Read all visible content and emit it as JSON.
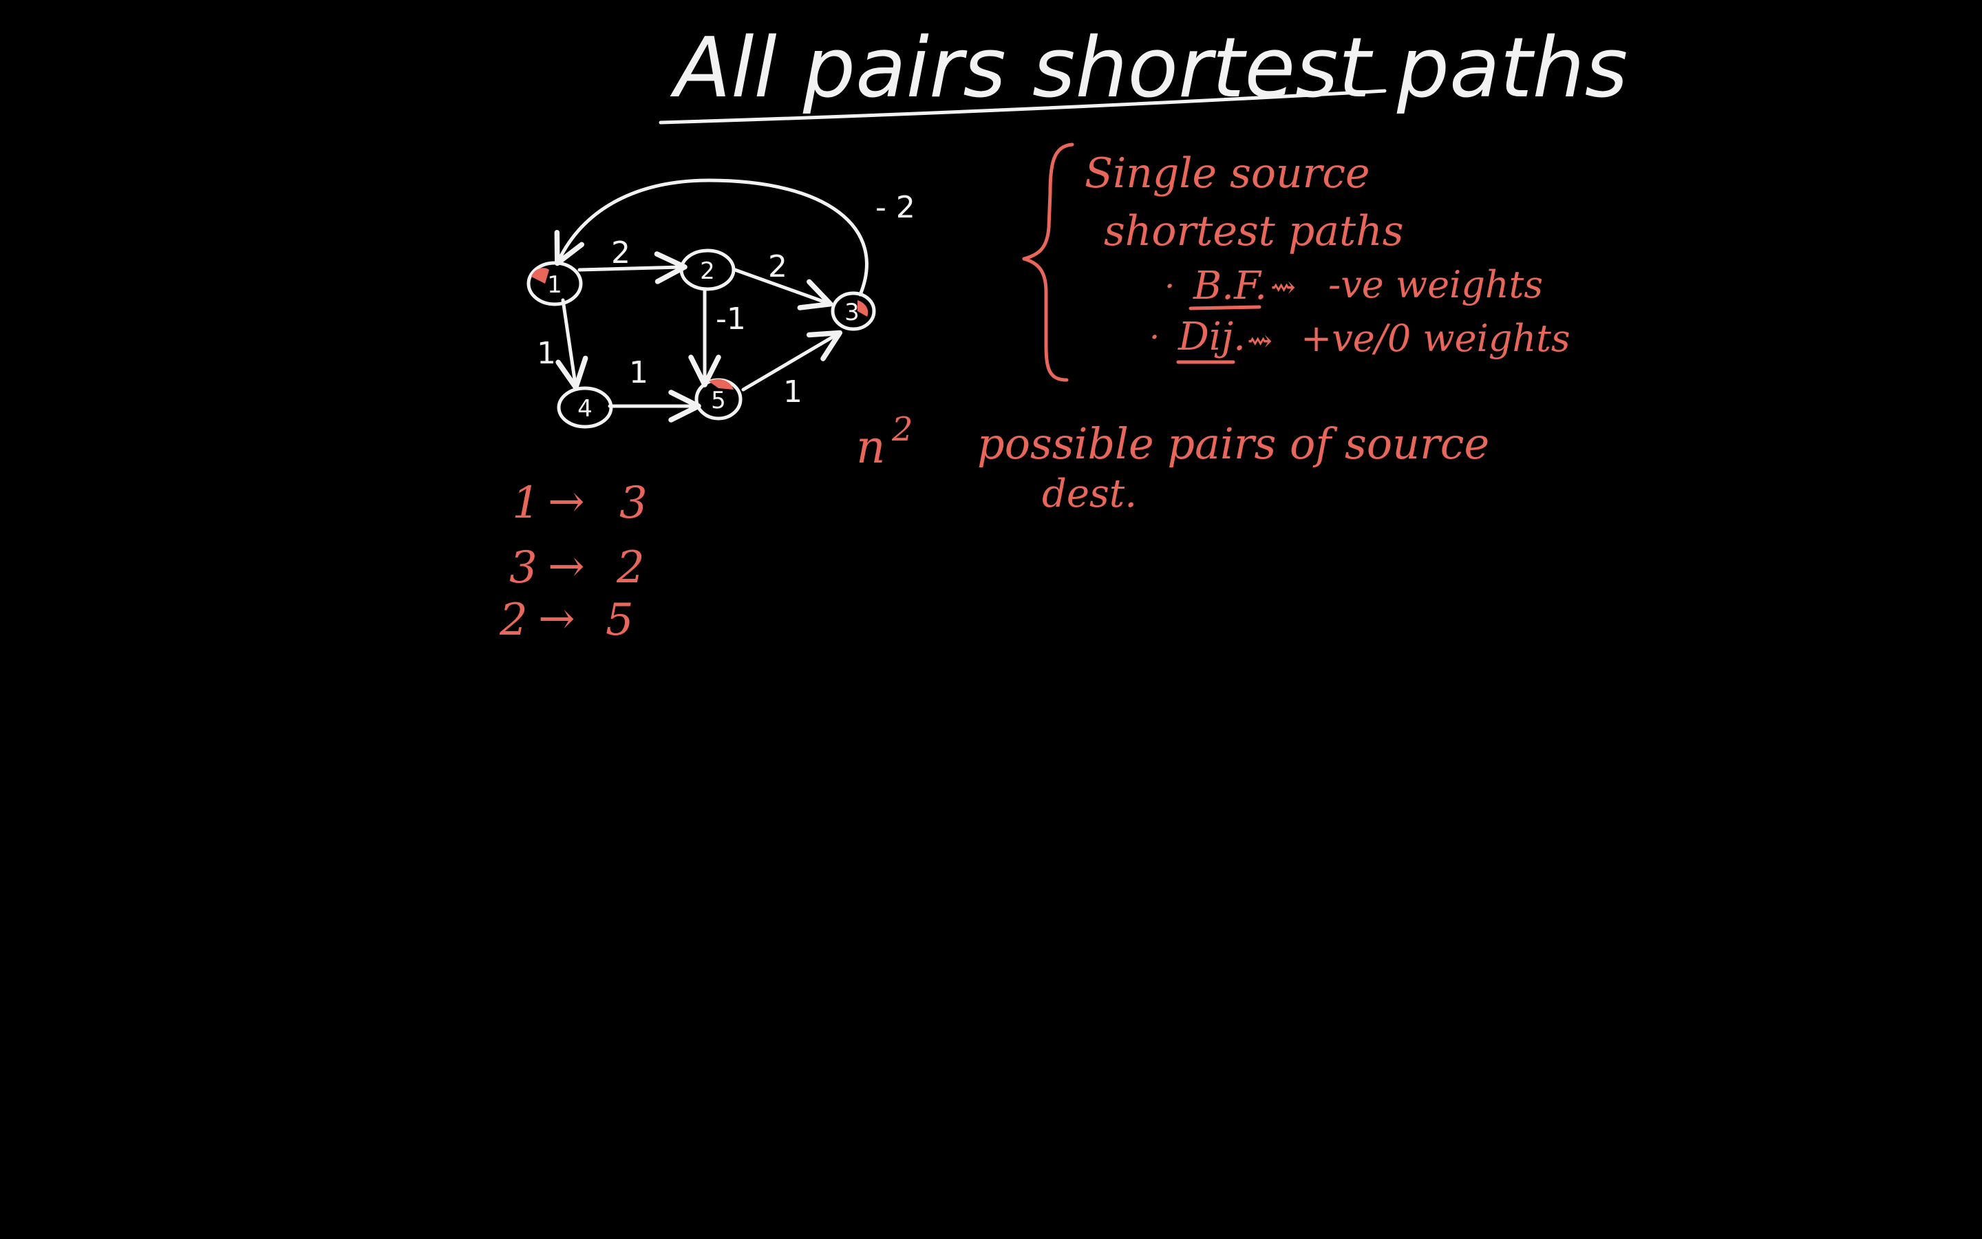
{
  "colors": {
    "background": "#000000",
    "chalk_white": "#f2f2f2",
    "chalk_red": "#e8675a"
  },
  "title": {
    "text": "All pairs shortest paths"
  },
  "graph": {
    "nodes": [
      {
        "id": "1",
        "label": "1"
      },
      {
        "id": "2",
        "label": "2"
      },
      {
        "id": "3",
        "label": "3"
      },
      {
        "id": "4",
        "label": "4"
      },
      {
        "id": "5",
        "label": "5"
      }
    ],
    "edges": [
      {
        "from": "1",
        "to": "2",
        "weight": "2"
      },
      {
        "from": "2",
        "to": "3",
        "weight": "2"
      },
      {
        "from": "3",
        "to": "1",
        "weight": "- 2"
      },
      {
        "from": "2",
        "to": "5",
        "weight": "-1"
      },
      {
        "from": "1",
        "to": "4",
        "weight": "1"
      },
      {
        "from": "4",
        "to": "5",
        "weight": "1"
      },
      {
        "from": "5",
        "to": "3",
        "weight": "1"
      }
    ]
  },
  "notes": {
    "line1": "Single source",
    "line2": "shortest paths",
    "bf_label": "B.F.",
    "bf_desc": "-ve weights",
    "dij_label": "Dij.",
    "dij_desc": "+ve/0 weights",
    "pairs_exp": "n",
    "pairs_sup": "2",
    "pairs_text": "possible pairs of source",
    "pairs_text2": "dest."
  },
  "pairs": [
    {
      "from": "1",
      "arrow": "→",
      "to": "3"
    },
    {
      "from": "3",
      "arrow": "→",
      "to": "2"
    },
    {
      "from": "2",
      "arrow": "→",
      "to": "5"
    }
  ]
}
